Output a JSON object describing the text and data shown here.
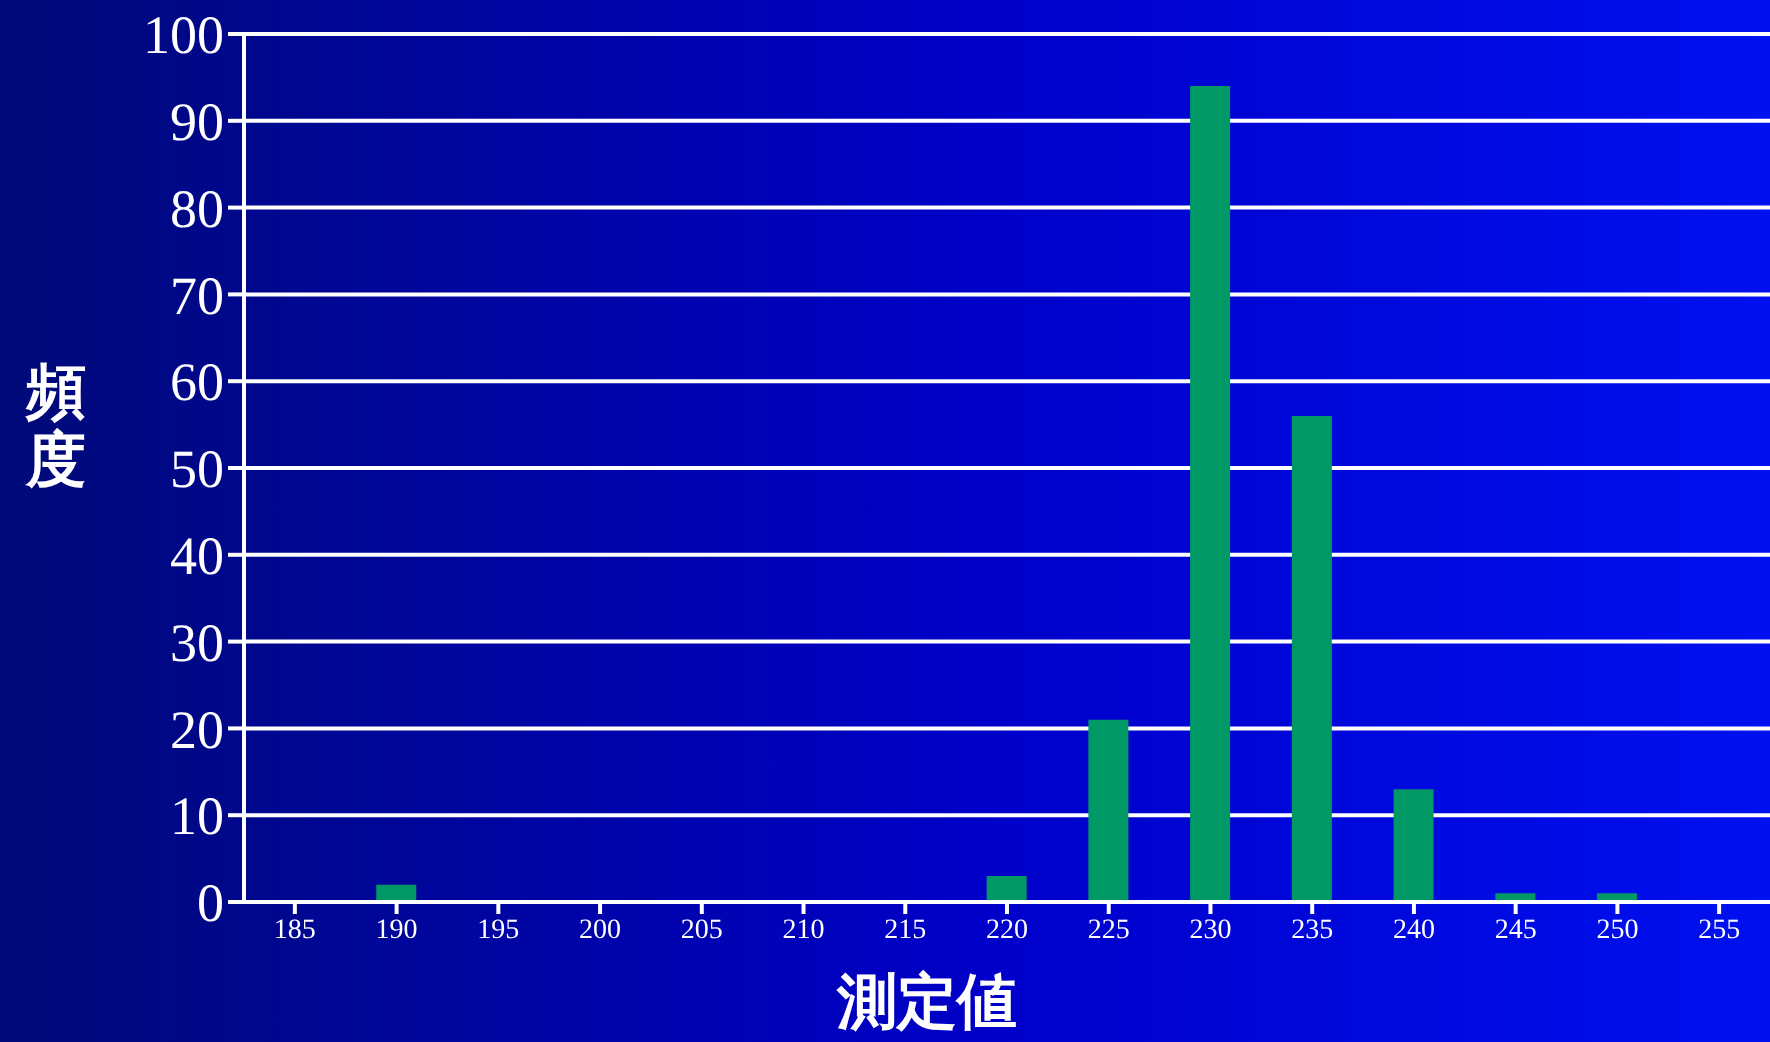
{
  "chart_data": {
    "type": "bar",
    "xlabel": "測定値",
    "ylabel": "頻度",
    "categories": [
      "185",
      "190",
      "195",
      "200",
      "205",
      "210",
      "215",
      "220",
      "225",
      "230",
      "235",
      "240",
      "245",
      "250",
      "255"
    ],
    "values": [
      0,
      2,
      0,
      0,
      0,
      0,
      0,
      3,
      21,
      94,
      56,
      13,
      1,
      1,
      0
    ],
    "color": "#009966",
    "ylim": [
      0,
      100
    ],
    "yticks": [
      0,
      10,
      20,
      30,
      40,
      50,
      60,
      70,
      80,
      90,
      100
    ],
    "grid": "y"
  }
}
